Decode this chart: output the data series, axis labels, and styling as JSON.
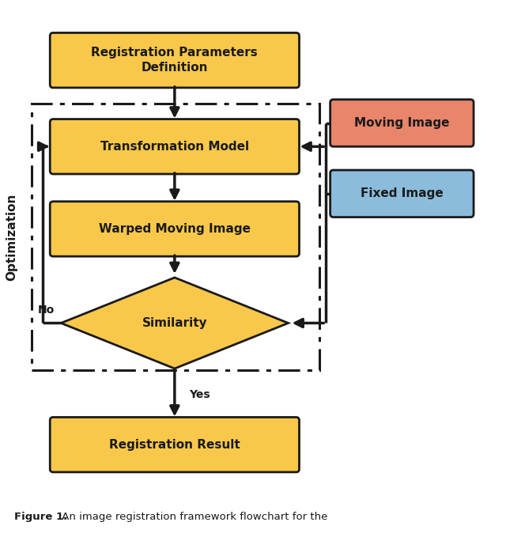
{
  "fig_width": 6.4,
  "fig_height": 6.84,
  "bg_color": "#ffffff",
  "yellow_color": "#F9C84A",
  "red_color": "#E8856A",
  "blue_color": "#8BBCDC",
  "black": "#1a1a1a",
  "caption_bold": "Figure 1.",
  "caption_rest": " An image registration framework flowchart for the",
  "optimization_label": "Optimization",
  "reg_params_label": "Registration Parameters\nDefinition",
  "transform_label": "Transformation Model",
  "warped_label": "Warped Moving Image",
  "similarity_label": "Similarity",
  "reg_result_label": "Registration Result",
  "moving_label": "Moving Image",
  "fixed_label": "Fixed Image",
  "no_label": "No",
  "yes_label": "Yes"
}
